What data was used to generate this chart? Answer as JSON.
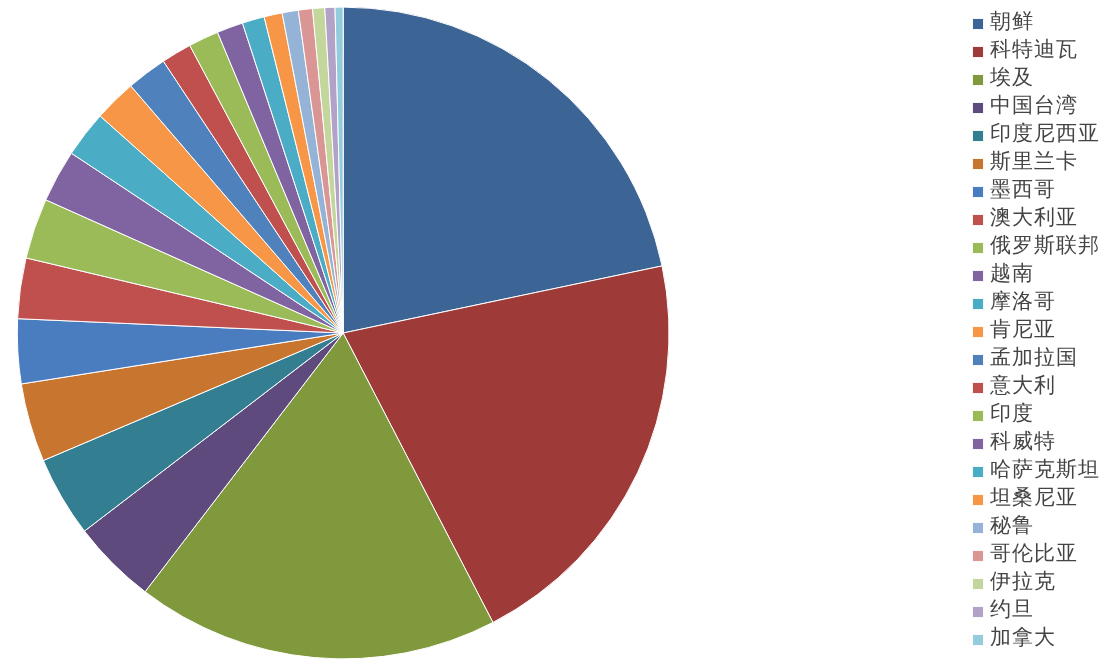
{
  "chart_data": {
    "type": "pie",
    "legend": "right",
    "categories": [
      "朝鲜",
      "科特迪瓦",
      "埃及",
      "中国台湾",
      "印度尼西亚",
      "斯里兰卡",
      "墨西哥",
      "澳大利亚",
      "俄罗斯联邦",
      "越南",
      "摩洛哥",
      "肯尼亚",
      "孟加拉国",
      "意大利",
      "印度",
      "科威特",
      "哈萨克斯坦",
      "坦桑尼亚",
      "秘鲁",
      "哥伦比亚",
      "伊拉克",
      "约旦",
      "加拿大"
    ],
    "values": [
      21.7,
      20.7,
      18.0,
      4.2,
      4.0,
      3.9,
      3.2,
      3.0,
      3.0,
      2.6,
      2.3,
      2.1,
      2.0,
      1.5,
      1.5,
      1.3,
      1.1,
      0.9,
      0.8,
      0.7,
      0.6,
      0.5,
      0.4
    ],
    "colors": [
      "#3c6494",
      "#9e3a38",
      "#7f993c",
      "#5f4a7d",
      "#347e91",
      "#c87530",
      "#4a7cc0",
      "#c0504d",
      "#9bbb59",
      "#8064a2",
      "#4bacc6",
      "#f79646",
      "#4f81bd",
      "#c0504d",
      "#9bbb59",
      "#8064a2",
      "#4bacc6",
      "#f79646",
      "#95b3d7",
      "#d99694",
      "#c3d69b",
      "#b3a2c7",
      "#93cddd"
    ]
  }
}
